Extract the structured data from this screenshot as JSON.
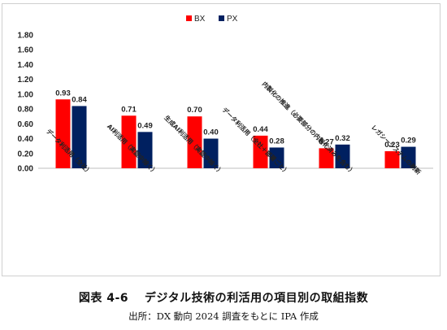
{
  "chart_data": {
    "type": "bar",
    "categories": [
      "データ利活用（全社）",
      "AI利活用（実証中除く）",
      "生成AI利活用（実証中除く）",
      "データ利活用（全社＋部署ごと）",
      "内製化の推進",
      "レガシーシステムの刷新"
    ],
    "category_lines": [
      [
        "データ利活用（全社）"
      ],
      [
        "AI利活用（実証中除く）"
      ],
      [
        "生成AI利活用（実証中除く）"
      ],
      [
        "データ利活用（全社＋部署ごと）"
      ],
      [
        "内製化の推進（必要部分の内製化済みを含む）"
      ],
      [
        "レガシーシステムの刷新"
      ]
    ],
    "series": [
      {
        "name": "BX",
        "color": "#ff0000",
        "values": [
          0.93,
          0.71,
          0.7,
          0.44,
          0.27,
          0.23
        ]
      },
      {
        "name": "PX",
        "color": "#002060",
        "values": [
          0.84,
          0.49,
          0.4,
          0.28,
          0.32,
          0.29
        ]
      }
    ],
    "value_labels": [
      [
        "0.93",
        "0.71",
        "0.70",
        "0.44",
        "0.27",
        "0.23"
      ],
      [
        "0.84",
        "0.49",
        "0.40",
        "0.28",
        "0.32",
        "0.29"
      ]
    ],
    "yticks": [
      "0.00",
      "0.20",
      "0.40",
      "0.60",
      "0.80",
      "1.00",
      "1.20",
      "1.40",
      "1.60",
      "1.80"
    ],
    "ylim": [
      0,
      1.8
    ],
    "grid": false,
    "legend_position": "top-center"
  },
  "caption": {
    "title": "図表 4-6　 デジタル技術の利活用の項目別の取組指数",
    "source": "出所：DX 動向 2024 調査をもとに IPA 作成"
  }
}
